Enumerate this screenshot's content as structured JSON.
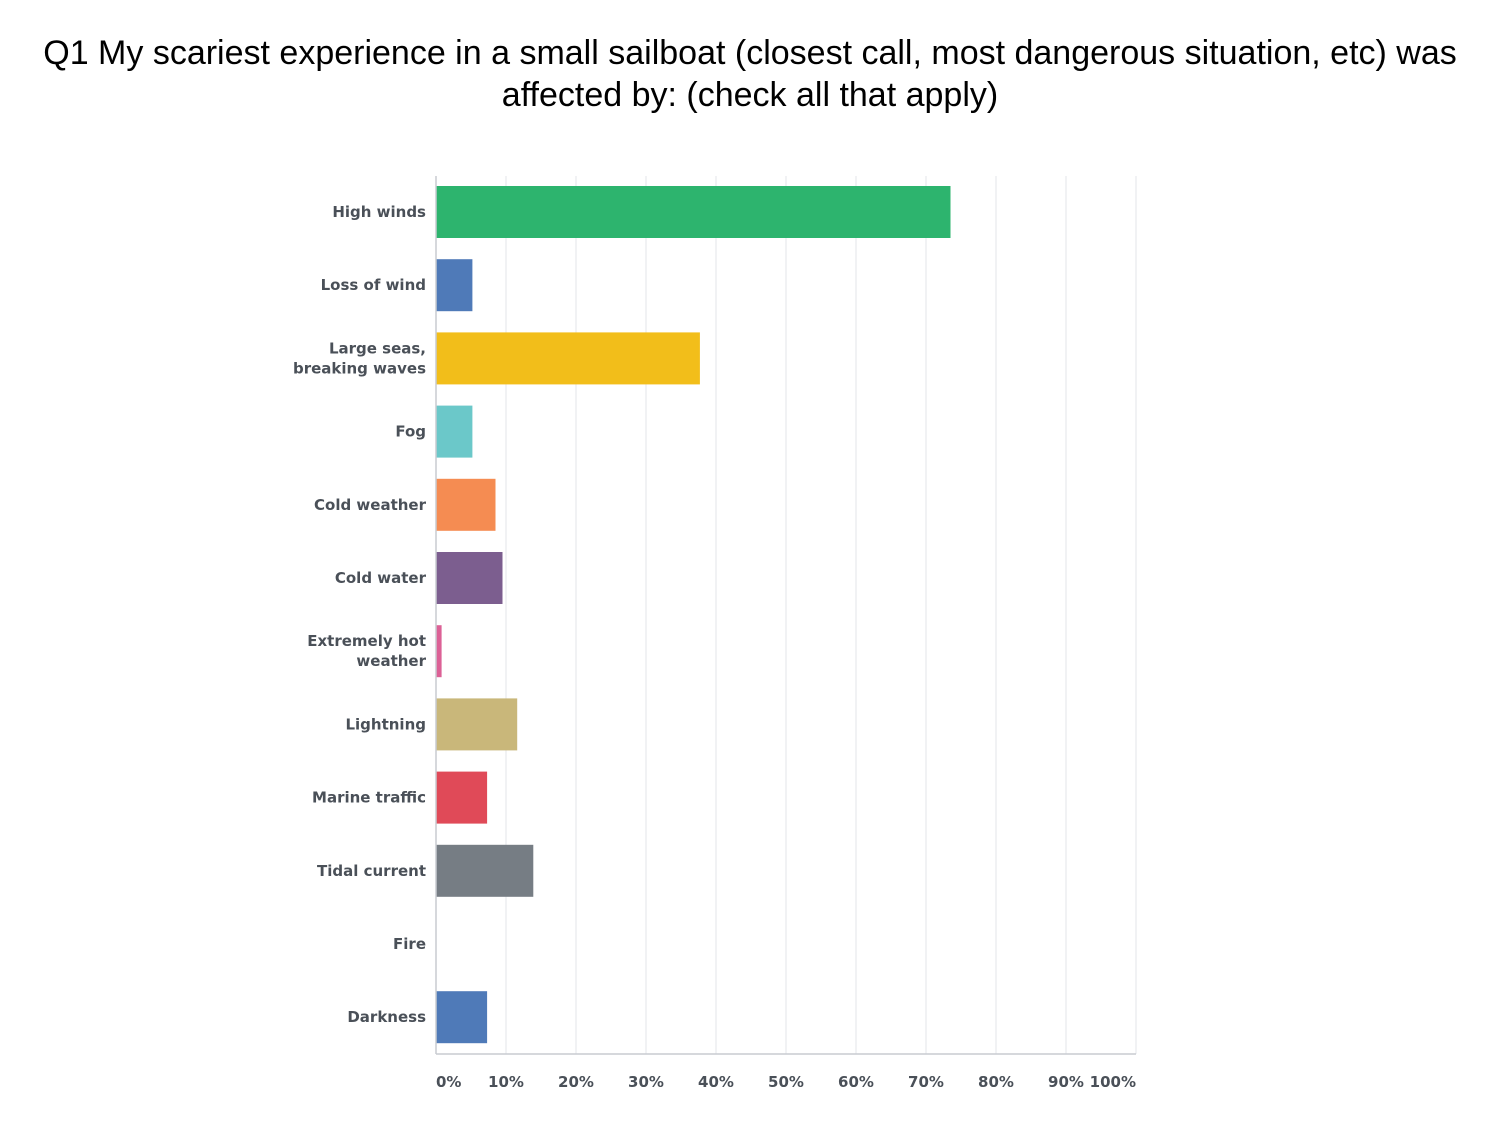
{
  "title": "Q1 My scariest experience in a small sailboat (closest call, most dangerous situation, etc) was affected by: (check all that apply)",
  "chart_data": {
    "type": "bar",
    "orientation": "horizontal",
    "title": "Q1 My scariest experience in a small sailboat (closest call, most dangerous situation, etc) was affected by: (check all that apply)",
    "categories": [
      [
        "High winds"
      ],
      [
        "Loss of wind"
      ],
      [
        "Large seas,",
        "breaking waves"
      ],
      [
        "Fog"
      ],
      [
        "Cold weather"
      ],
      [
        "Cold water"
      ],
      [
        "Extremely hot",
        "weather"
      ],
      [
        "Lightning"
      ],
      [
        "Marine traffic"
      ],
      [
        "Tidal current"
      ],
      [
        "Fire"
      ],
      [
        "Darkness"
      ]
    ],
    "values": [
      73.5,
      5.2,
      37.7,
      5.2,
      8.5,
      9.5,
      0.8,
      11.6,
      7.3,
      13.9,
      0,
      7.3
    ],
    "unit": "%",
    "xlim": [
      0,
      100
    ],
    "ticks": [
      "0%",
      "10%",
      "20%",
      "30%",
      "40%",
      "50%",
      "60%",
      "70%",
      "80%",
      "90%",
      "100%"
    ],
    "grid": true,
    "colors": [
      "#2db46e",
      "#4f7ab8",
      "#f2be1a",
      "#6bc8c9",
      "#f58c52",
      "#7c5e8f",
      "#dc6196",
      "#c9b77a",
      "#e04a58",
      "#767d84",
      "#4f7ab8",
      "#4f7ab8"
    ]
  }
}
